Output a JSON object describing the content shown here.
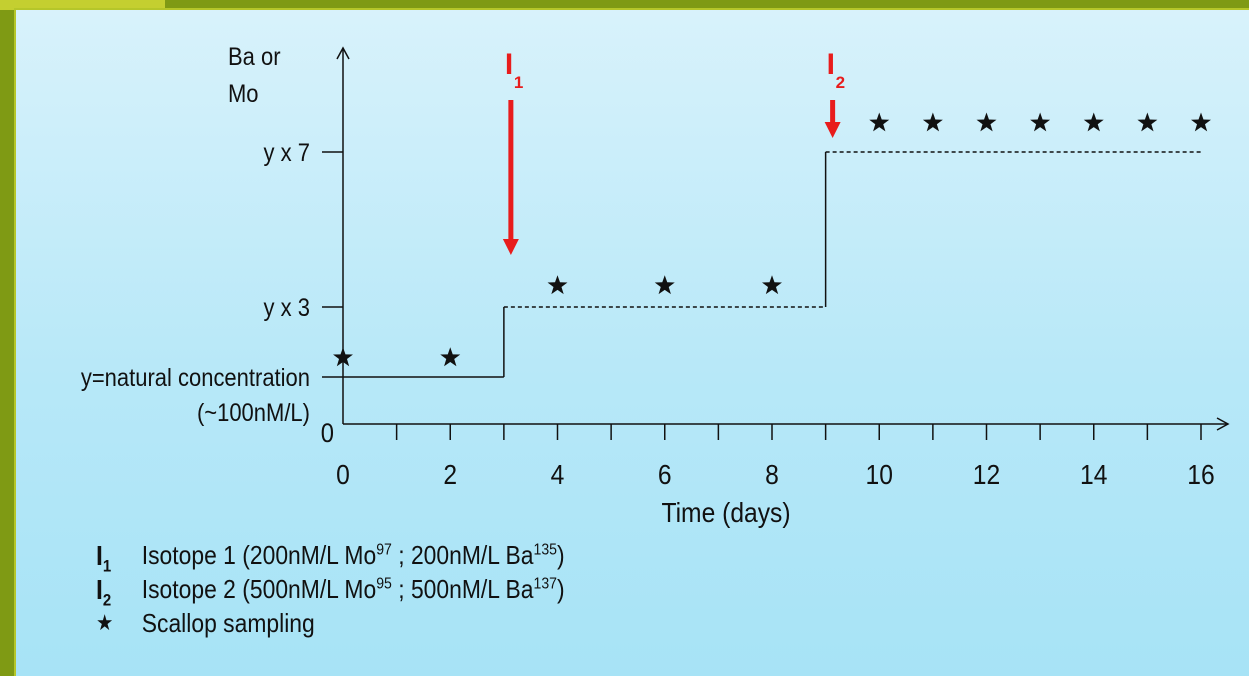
{
  "chart_data": {
    "type": "line",
    "ylabel": [
      "Ba or",
      "Mo"
    ],
    "xlabel": "Time (days)",
    "x_ticks": [
      0,
      2,
      4,
      6,
      8,
      10,
      12,
      14,
      16
    ],
    "x_minor_ticks": [
      1,
      3,
      5,
      7,
      9,
      11,
      13,
      15
    ],
    "y_tick_labels": [
      {
        "value": 0,
        "label": "0"
      },
      {
        "value": 1,
        "label": "y=natural concentration",
        "sublabel": "(~100nM/L)"
      },
      {
        "value": 3,
        "label": "y x 3"
      },
      {
        "value": 7,
        "label": "y x 7"
      }
    ],
    "xlim": [
      0,
      16
    ],
    "ylim": [
      0,
      8.5
    ],
    "concentration_levels": [
      {
        "x_start": 0,
        "x_end": 3,
        "y": 1,
        "style": "solid"
      },
      {
        "x_start": 3,
        "x_end": 9,
        "y": 3,
        "style": "dashed"
      },
      {
        "x_start": 9,
        "x_end": 16,
        "y": 7,
        "style": "dashed"
      }
    ],
    "step_risers": [
      {
        "x": 3,
        "y_from": 1,
        "y_to": 3
      },
      {
        "x": 9,
        "y_from": 3,
        "y_to": 7
      }
    ],
    "sampling_points": [
      {
        "x": 0,
        "y": 1.55
      },
      {
        "x": 2,
        "y": 1.55
      },
      {
        "x": 4,
        "y": 3.55
      },
      {
        "x": 6,
        "y": 3.55
      },
      {
        "x": 8,
        "y": 3.55
      },
      {
        "x": 10,
        "y": 7.75
      },
      {
        "x": 11,
        "y": 7.75
      },
      {
        "x": 12,
        "y": 7.75
      },
      {
        "x": 13,
        "y": 7.75
      },
      {
        "x": 14,
        "y": 7.75
      },
      {
        "x": 15,
        "y": 7.75
      },
      {
        "x": 16,
        "y": 7.75
      }
    ],
    "injections": [
      {
        "label": "I",
        "sub": "1",
        "x": 3,
        "color": "#e81c1c"
      },
      {
        "label": "I",
        "sub": "2",
        "x": 9,
        "color": "#e81c1c"
      }
    ],
    "legend": [
      {
        "symbol": "I",
        "sub": "1",
        "text": "Isotope 1 (200nM/L Mo",
        "sup1": "97",
        "mid": " ; 200nM/L Ba",
        "sup2": "135",
        "end": ")"
      },
      {
        "symbol": "I",
        "sub": "2",
        "text": "Isotope 2 (500nM/L Mo",
        "sup1": "95",
        "mid": " ; 500nM/L Ba",
        "sup2": "137",
        "end": ")"
      },
      {
        "symbol": "★",
        "sub": "",
        "text": "Scallop sampling",
        "sup1": "",
        "mid": "",
        "sup2": "",
        "end": ""
      }
    ]
  }
}
